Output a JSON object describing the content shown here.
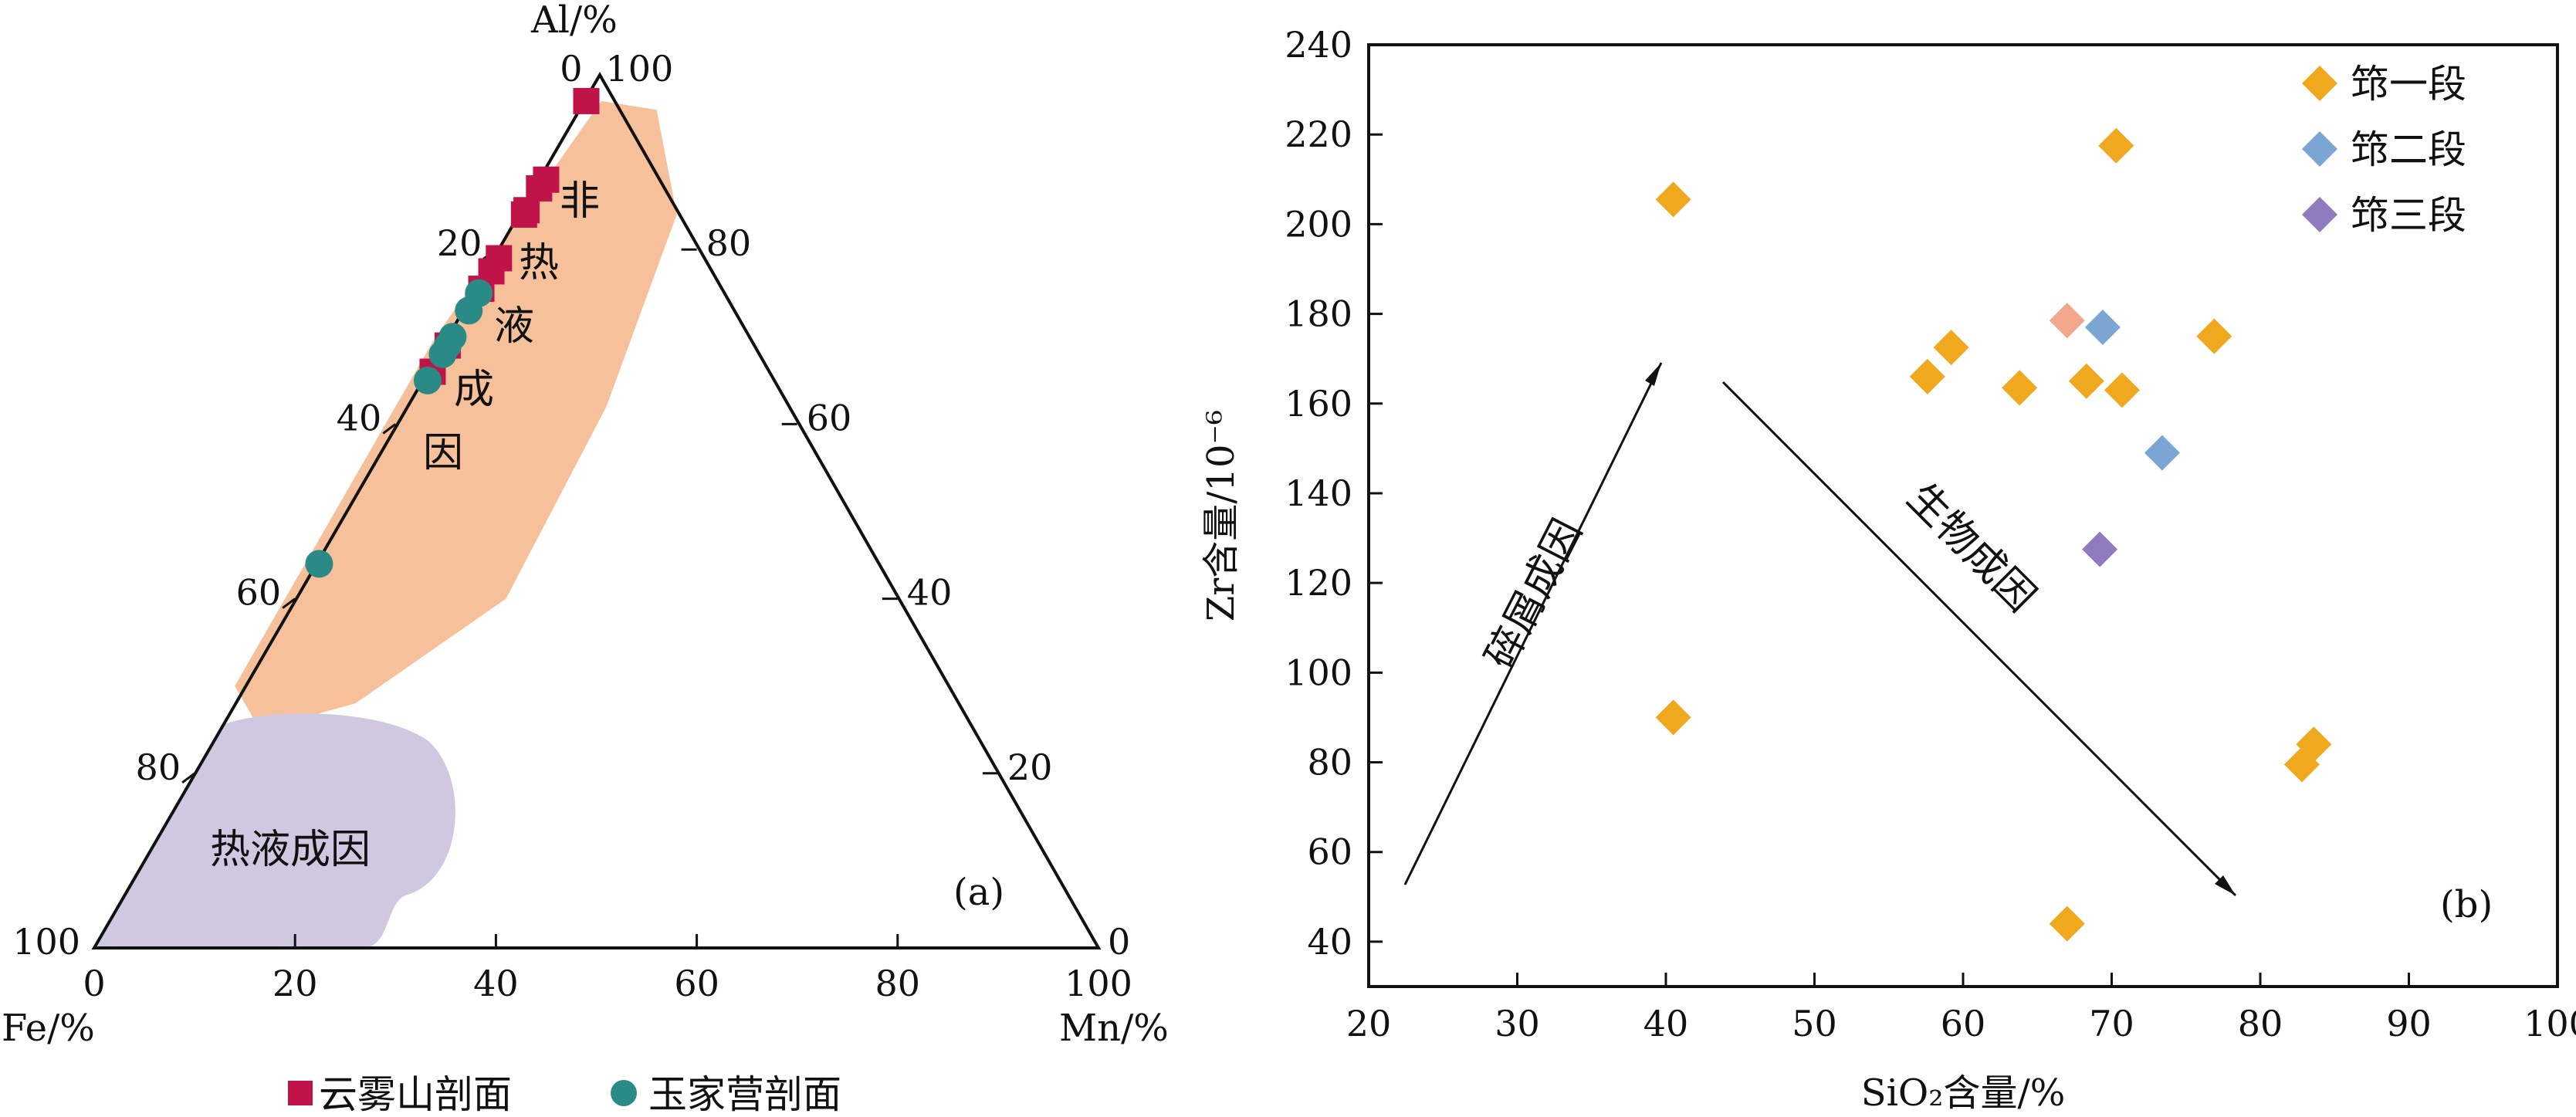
{
  "chart_data": [
    {
      "type": "scatter",
      "kind": "ternary",
      "panel_label": "(a)",
      "axes": {
        "top_label": "Al/%",
        "left_label": "Fe/%",
        "right_label": "Mn/%",
        "bottom_ticks": [
          "0",
          "20",
          "40",
          "60",
          "80",
          "100"
        ],
        "left_ticks": [
          "0",
          "20",
          "40",
          "60",
          "80",
          "100"
        ],
        "right_ticks": [
          "100",
          "80",
          "60",
          "40",
          "20",
          "0"
        ],
        "range": [
          0,
          100
        ]
      },
      "regions": [
        {
          "label_chars": [
            "非",
            "热",
            "液",
            "成",
            "因"
          ],
          "color": "#f6c19a"
        },
        {
          "label": "热液成因",
          "color": "#cfc8e0"
        }
      ],
      "series": [
        {
          "name": "云雾山剖面",
          "marker": "square",
          "color": "#c0134a",
          "points": [
            {
              "Al": 97,
              "Fe": 2.5,
              "Mn": 0.5
            },
            {
              "Al": 88,
              "Fe": 11,
              "Mn": 1
            },
            {
              "Al": 87,
              "Fe": 12.2,
              "Mn": 0.8
            },
            {
              "Al": 84,
              "Fe": 15.2,
              "Mn": 0.8
            },
            {
              "Al": 84.5,
              "Fe": 14.7,
              "Mn": 0.8
            },
            {
              "Al": 79,
              "Fe": 20.2,
              "Mn": 0.8
            },
            {
              "Al": 77.5,
              "Fe": 21.7,
              "Mn": 0.8
            },
            {
              "Al": 75.5,
              "Fe": 23.7,
              "Mn": 0.8
            },
            {
              "Al": 69,
              "Fe": 30.3,
              "Mn": 0.7
            },
            {
              "Al": 66,
              "Fe": 33.3,
              "Mn": 0.7
            }
          ]
        },
        {
          "name": "玉家营剖面",
          "marker": "circle",
          "color": "#2a8a85",
          "points": [
            {
              "Al": 75,
              "Fe": 24.2,
              "Mn": 0.8
            },
            {
              "Al": 73,
              "Fe": 26.2,
              "Mn": 0.8
            },
            {
              "Al": 70,
              "Fe": 29.3,
              "Mn": 0.7
            },
            {
              "Al": 69,
              "Fe": 30.3,
              "Mn": 0.7
            },
            {
              "Al": 68,
              "Fe": 31.3,
              "Mn": 0.7
            },
            {
              "Al": 65,
              "Fe": 34.3,
              "Mn": 0.7
            },
            {
              "Al": 44,
              "Fe": 55.6,
              "Mn": 0.4
            }
          ]
        }
      ]
    },
    {
      "type": "scatter",
      "panel_label": "(b)",
      "xlabel": "SiO₂含量/%",
      "ylabel": "Zr含量/10⁻⁶",
      "xlim": [
        20,
        100
      ],
      "ylim": [
        30,
        240
      ],
      "xticks": [
        20,
        30,
        40,
        50,
        60,
        70,
        80,
        90,
        100
      ],
      "yticks": [
        40,
        60,
        80,
        100,
        120,
        140,
        160,
        180,
        200,
        220,
        240
      ],
      "legend_position": "top-right",
      "annotations": [
        "碎屑成因",
        "生物成因"
      ],
      "series": [
        {
          "name": "筇一段",
          "marker": "diamond",
          "color": "#f0a81f",
          "points": [
            [
              40.5,
              205.5
            ],
            [
              70.3,
              217.5
            ],
            [
              57.6,
              166
            ],
            [
              59.2,
              172.5
            ],
            [
              63.8,
              163.5
            ],
            [
              68.3,
              165
            ],
            [
              70.7,
              163
            ],
            [
              76.9,
              175
            ],
            [
              40.5,
              90
            ],
            [
              82.8,
              79.5
            ],
            [
              83.6,
              84
            ],
            [
              67.0,
              44
            ]
          ]
        },
        {
          "name": "筇二段",
          "marker": "diamond",
          "color": "#7ba6d4",
          "points": [
            [
              69.4,
              177
            ],
            [
              73.4,
              149
            ]
          ]
        },
        {
          "name": "筇三段",
          "marker": "diamond",
          "color": "#8f7bbd",
          "points": [
            [
              69.2,
              127.5
            ]
          ]
        },
        {
          "marker": "diamond",
          "color": "#f2a78d",
          "points": [
            [
              67.0,
              178.5
            ]
          ]
        }
      ]
    }
  ]
}
